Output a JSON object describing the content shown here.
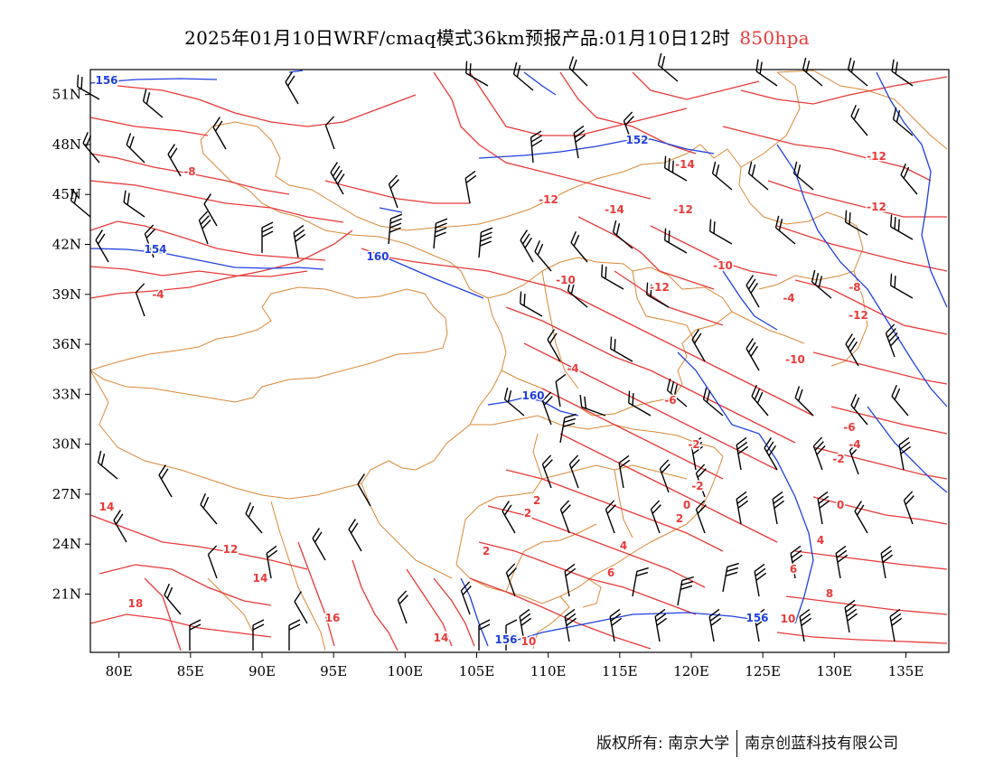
{
  "title": {
    "main": "2025年01月10日WRF/cmaq模式36km预报产品:01月10日12时",
    "level": "850hpa",
    "level_color": "#e83a3a"
  },
  "map": {
    "lon_range": [
      78,
      138
    ],
    "lat_range": [
      17.5,
      52.5
    ],
    "lon_ticks": [
      "80E",
      "85E",
      "90E",
      "95E",
      "100E",
      "105E",
      "110E",
      "115E",
      "120E",
      "125E",
      "130E",
      "135E"
    ],
    "lat_ticks": [
      "51N",
      "48N",
      "45N",
      "42N",
      "39N",
      "36N",
      "33N",
      "30N",
      "27N",
      "24N",
      "21N"
    ],
    "colors": {
      "temperature": "#e83a3a",
      "geopotential": "#2040e0",
      "boundary": "#d9893a",
      "wind": "#000000"
    },
    "temperature_labels": [
      "-8",
      "-14",
      "-12",
      "-12",
      "-14",
      "-12",
      "-12",
      "-10",
      "-4",
      "-8",
      "-12",
      "-12",
      "-4",
      "-10",
      "-10",
      "-6",
      "-6",
      "-4",
      "-4",
      "-2",
      "-2",
      "-2",
      "0",
      "2",
      "2",
      "0",
      "4",
      "2",
      "4",
      "2",
      "6",
      "6",
      "8",
      "10",
      "12",
      "14",
      "14",
      "16",
      "18",
      "14",
      "10"
    ],
    "geopotential_labels": [
      "156",
      "152",
      "154",
      "160",
      "160",
      "156",
      "156"
    ]
  },
  "footer": {
    "copyright": "版权所有: 南京大学",
    "company": "南京创蓝科技有限公司"
  }
}
